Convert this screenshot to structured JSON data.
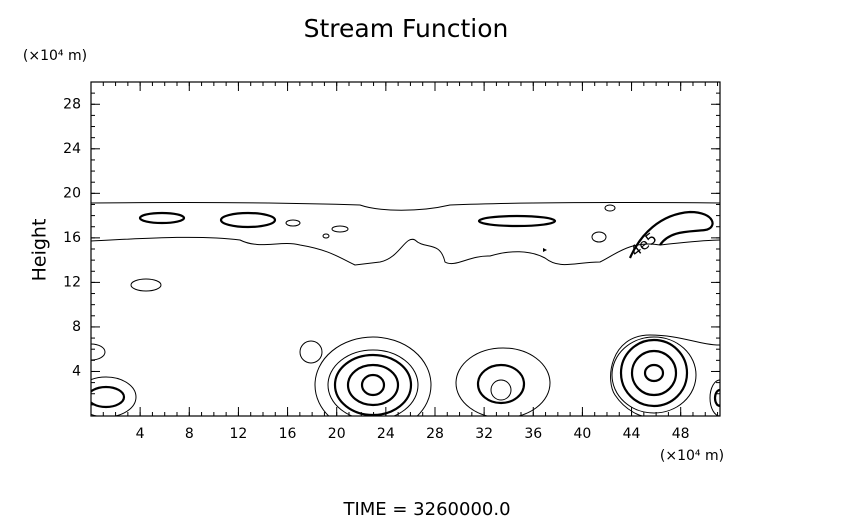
{
  "chart_data": {
    "type": "contour",
    "title": "Stream Function",
    "y_unit": "(×10⁴ m)",
    "x_unit": "(×10⁴ m)",
    "ylabel": "Height",
    "contour_labels": [
      "4e5"
    ],
    "footer": "TIME = 3260000.0",
    "xlim": [
      0,
      51.2
    ],
    "ylim": [
      0,
      30
    ],
    "xticks": [
      4,
      8,
      12,
      16,
      20,
      24,
      28,
      32,
      36,
      40,
      44,
      48
    ],
    "yticks": [
      4,
      8,
      12,
      16,
      20,
      24,
      28
    ]
  }
}
